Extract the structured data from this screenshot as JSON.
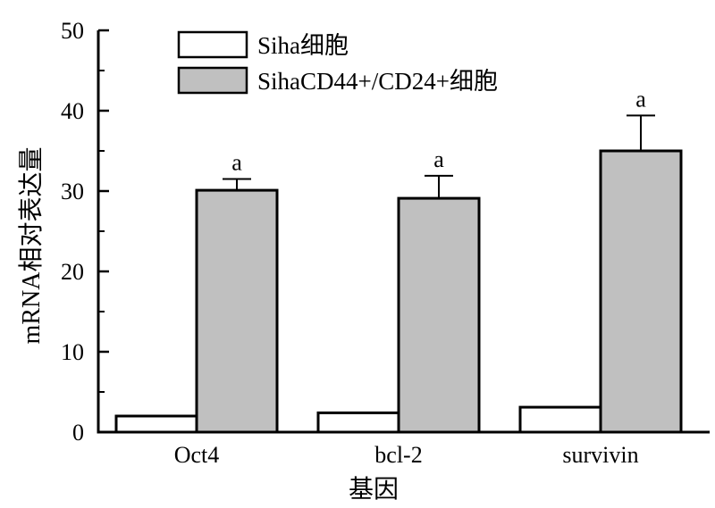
{
  "chart_data": {
    "type": "bar",
    "title": "",
    "xlabel": "基因",
    "ylabel": "mRNA相对表达量",
    "categories": [
      "Oct4",
      "bcl-2",
      "survivin"
    ],
    "ylim": [
      0,
      50
    ],
    "yticks": [
      0,
      10,
      20,
      30,
      40,
      50
    ],
    "grid": false,
    "legend_position": "top-left",
    "series": [
      {
        "name": "Siha细胞",
        "values": [
          2.0,
          2.4,
          3.1
        ],
        "errors": [
          0,
          0,
          0
        ],
        "labels": [
          "",
          "",
          ""
        ],
        "color": "#ffffff"
      },
      {
        "name": "SihaCD44+/CD24+细胞",
        "values": [
          30.1,
          29.1,
          35.0
        ],
        "errors": [
          1.4,
          2.8,
          4.4
        ],
        "labels": [
          "a",
          "a",
          "a"
        ],
        "color": "#c0c0c0"
      }
    ]
  }
}
